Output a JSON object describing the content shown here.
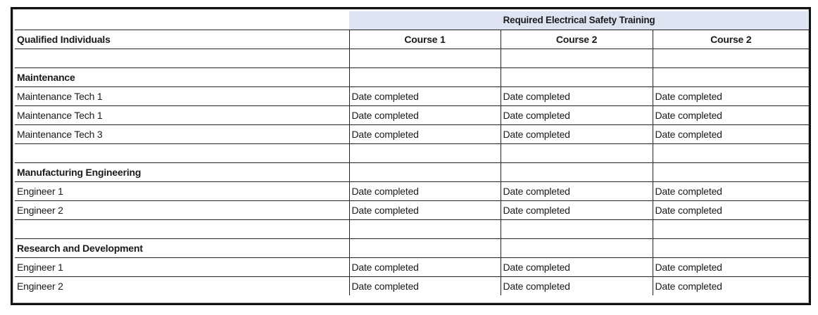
{
  "table": {
    "banner": "Required Electrical Safety Training",
    "first_header": "Qualified Individuals",
    "course_headers": [
      "Course 1",
      "Course 2",
      "Course 2"
    ],
    "rows": [
      {
        "type": "blank",
        "label": "",
        "cells": [
          "",
          "",
          ""
        ]
      },
      {
        "type": "group",
        "label": "Maintenance",
        "cells": [
          "",
          "",
          ""
        ]
      },
      {
        "type": "item",
        "label": "Maintenance Tech 1",
        "cells": [
          "Date completed",
          "Date completed",
          "Date completed"
        ]
      },
      {
        "type": "item",
        "label": "Maintenance Tech 1",
        "cells": [
          "Date completed",
          "Date completed",
          "Date completed"
        ]
      },
      {
        "type": "item",
        "label": "Maintenance Tech 3",
        "cells": [
          "Date completed",
          "Date completed",
          "Date completed"
        ]
      },
      {
        "type": "blank",
        "label": "",
        "cells": [
          "",
          "",
          ""
        ]
      },
      {
        "type": "group",
        "label": "Manufacturing Engineering",
        "cells": [
          "",
          "",
          ""
        ]
      },
      {
        "type": "item",
        "label": "Engineer 1",
        "cells": [
          "Date completed",
          "Date completed",
          "Date completed"
        ]
      },
      {
        "type": "item",
        "label": "Engineer 2",
        "cells": [
          "Date completed",
          "Date completed",
          "Date completed"
        ]
      },
      {
        "type": "blank",
        "label": "",
        "cells": [
          "",
          "",
          ""
        ]
      },
      {
        "type": "group",
        "label": "Research and Development",
        "cells": [
          "",
          "",
          ""
        ]
      },
      {
        "type": "item",
        "label": "Engineer 1",
        "cells": [
          "Date completed",
          "Date completed",
          "Date completed"
        ]
      },
      {
        "type": "item",
        "label": "Engineer 2",
        "cells": [
          "Date completed",
          "Date completed",
          "Date completed"
        ]
      }
    ]
  },
  "colors": {
    "banner_bg": "#dde3f1",
    "border": "#222222"
  }
}
